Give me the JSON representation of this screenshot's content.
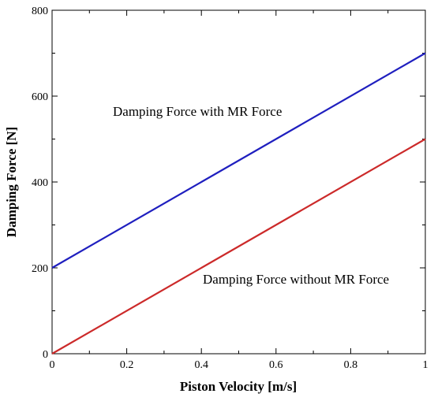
{
  "chart_data": {
    "type": "line",
    "title": "",
    "xlabel": "Piston Velocity [m/s]",
    "ylabel": "Damping Force [N]",
    "xlim": [
      0,
      1
    ],
    "ylim": [
      0,
      800
    ],
    "xticks": [
      0,
      0.2,
      0.4,
      0.6,
      0.8,
      1
    ],
    "xtick_labels": [
      "0",
      "0.2",
      "0.4",
      "0.6",
      "0.8",
      "1"
    ],
    "yticks": [
      0,
      200,
      400,
      600,
      800
    ],
    "ytick_labels": [
      "0",
      "200",
      "400",
      "600",
      "800"
    ],
    "grid": false,
    "legend": "none",
    "series": [
      {
        "label": "Damping Force with MR Force",
        "color": "#1f1fbf",
        "x": [
          0,
          1
        ],
        "y": [
          200,
          700
        ]
      },
      {
        "label": "Damping Force without MR Force",
        "color": "#cc2a2a",
        "x": [
          0,
          1
        ],
        "y": [
          0,
          500
        ]
      }
    ]
  }
}
